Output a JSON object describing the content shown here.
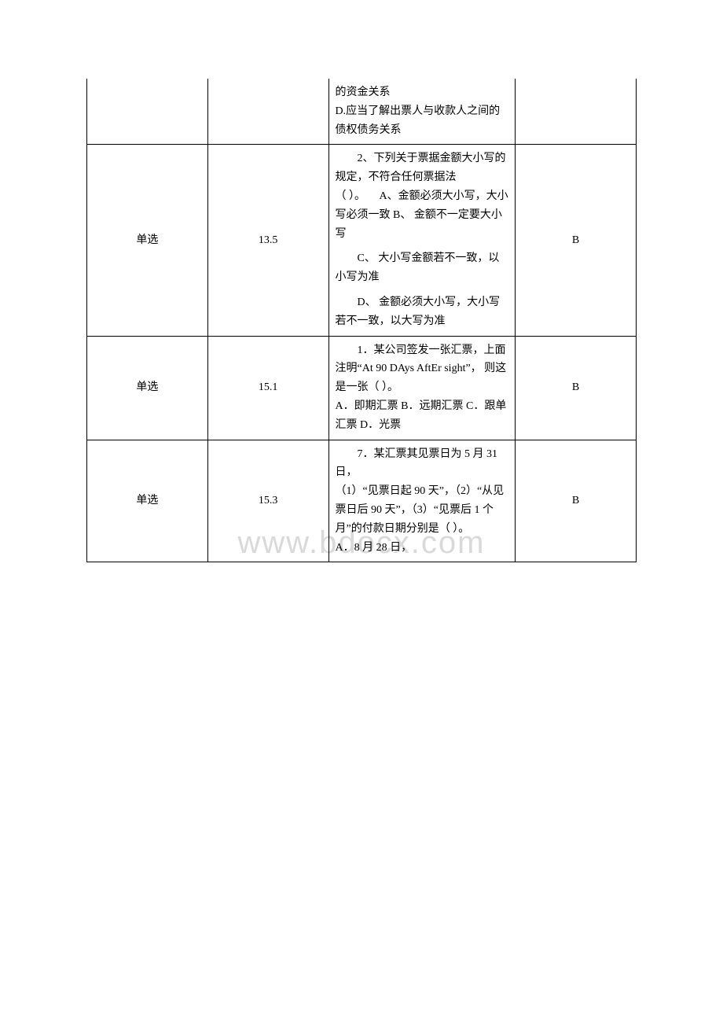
{
  "watermark": "www.bdocx.com",
  "rows": [
    {
      "type": "",
      "num": "",
      "question_html": "<p class='flat'>的资金关系<br>D.应当了解出票人与收款人之间的债权债务关系</p>",
      "answer": "",
      "no_top": true
    },
    {
      "type": "单选",
      "num": "13.5",
      "question_html": "<p class='para'>2、下列关于票据金额大小写的规定，不符合任何票据法（&nbsp;）。&nbsp;&nbsp;&nbsp;&nbsp;&nbsp;A、金额必须大小写，大小写必须一致 B、 金额不一定要大小写</p><p class='para'>C、 大小写金额若不一致，以小写为准</p><p class='para'>D、 金额必须大小写，大小写若不一致，以大写为准</p>",
      "answer": "B"
    },
    {
      "type": "单选",
      "num": "15.1",
      "question_html": "<p class='para'>1．某公司签发一张汇票，上面注明“At 90 DAys AftEr sight”， 则这是一张（ ）。<br>A．即期汇票 B．远期汇票 C．跟单汇票 D．光票</p>",
      "answer": "B"
    },
    {
      "type": "单选",
      "num": "15.3",
      "question_html": "<p class='para'>7．某汇票其见票日为 5 月 31 日，<br>（1）“见票日起 90 天”，（2）“从见票日后 90 天”，（3）“见票后 1 个月”的付款日期分别是（ ）。<br>A．8 月 28 日，</p>",
      "answer": "B"
    }
  ]
}
